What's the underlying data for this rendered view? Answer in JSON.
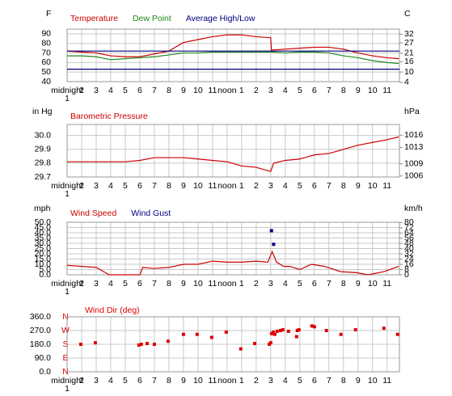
{
  "chart_data": [
    {
      "type": "line",
      "y_unit": "F",
      "y2_unit": "C",
      "xlim": [
        1,
        23.85
      ],
      "xticks": [
        {
          "value": 1,
          "label": "midnight"
        },
        2,
        3,
        4,
        5,
        6,
        7,
        8,
        9,
        10,
        11,
        {
          "value": 12,
          "label": "noon"
        },
        {
          "value": 13,
          "label": "1"
        },
        {
          "value": 14,
          "label": "2"
        },
        {
          "value": 15,
          "label": "3"
        },
        {
          "value": 16,
          "label": "4"
        },
        {
          "value": 17,
          "label": "5"
        },
        {
          "value": 18,
          "label": "6"
        },
        {
          "value": 19,
          "label": "7"
        },
        {
          "value": 20,
          "label": "8"
        },
        {
          "value": 21,
          "label": "9"
        },
        {
          "value": 22,
          "label": "10"
        },
        {
          "value": 23,
          "label": "11"
        }
      ],
      "xtick_sublabel": "1",
      "ylim": [
        40,
        95
      ],
      "yticks": [
        90,
        80,
        70,
        60,
        50,
        40
      ],
      "y2lim": [
        4.44,
        35
      ],
      "y2ticks": [
        32,
        27,
        21,
        16,
        10,
        4
      ],
      "grid": true,
      "series": [
        {
          "name": "Temperature",
          "color": "#cc0000",
          "x": [
            1,
            2,
            3,
            4,
            5,
            6,
            7,
            8,
            9,
            10,
            11,
            12,
            13,
            14,
            15,
            15.05,
            16,
            17,
            18,
            19,
            20,
            21,
            22,
            23,
            23.8
          ],
          "values": [
            72,
            71,
            70,
            67,
            66,
            66,
            69,
            72,
            81,
            84,
            87,
            89,
            89,
            87,
            86,
            73,
            74,
            75,
            76,
            76,
            74,
            70,
            67,
            65,
            64
          ]
        },
        {
          "name": "Dew Point",
          "color": "#1e8a1e",
          "x": [
            1,
            2,
            3,
            4,
            5,
            6,
            7,
            8,
            9,
            10,
            11,
            12,
            13,
            14,
            15,
            15.05,
            16,
            17,
            18,
            19,
            20,
            21,
            22,
            23,
            23.8
          ],
          "values": [
            67,
            67,
            66,
            63,
            64,
            65,
            66,
            68,
            70,
            70,
            71,
            71,
            71,
            71,
            71,
            71,
            70,
            71,
            71,
            70,
            67,
            65,
            62,
            60,
            59
          ]
        },
        {
          "name": "Average High/Low",
          "color": "#000080",
          "x": [
            1,
            23.85
          ],
          "values": [
            72,
            72
          ]
        },
        {
          "color": "#000080",
          "x": [
            1,
            23.85
          ],
          "values": [
            53,
            53
          ]
        }
      ]
    },
    {
      "type": "line",
      "y_unit": "in Hg",
      "y2_unit": "hPa",
      "xlim": [
        1,
        23.85
      ],
      "xticks": [
        {
          "value": 1,
          "label": "midnight"
        },
        2,
        3,
        4,
        5,
        6,
        7,
        8,
        9,
        10,
        11,
        {
          "value": 12,
          "label": "noon"
        },
        {
          "value": 13,
          "label": "1"
        },
        {
          "value": 14,
          "label": "2"
        },
        {
          "value": 15,
          "label": "3"
        },
        {
          "value": 16,
          "label": "4"
        },
        {
          "value": 17,
          "label": "5"
        },
        {
          "value": 18,
          "label": "6"
        },
        {
          "value": 19,
          "label": "7"
        },
        {
          "value": 20,
          "label": "8"
        },
        {
          "value": 21,
          "label": "9"
        },
        {
          "value": 22,
          "label": "10"
        },
        {
          "value": 23,
          "label": "11"
        }
      ],
      "xtick_sublabel": "1",
      "ylim": [
        29.7,
        30.08
      ],
      "yticks": [
        {
          "value": 30,
          "label": "30.0"
        },
        29.9,
        29.8,
        29.7
      ],
      "y2lim": [
        1005.76,
        1018.63
      ],
      "y2ticks": [
        1016,
        1013,
        1009,
        1006
      ],
      "grid": true,
      "series": [
        {
          "name": "Barometric Pressure",
          "color": "#cc0000",
          "x": [
            1,
            2,
            3,
            4,
            5,
            6,
            7,
            8,
            9,
            10,
            11,
            12,
            13,
            14,
            15,
            15.2,
            16,
            17,
            18,
            19,
            20,
            21,
            22,
            23,
            23.8
          ],
          "values": [
            29.81,
            29.81,
            29.81,
            29.81,
            29.81,
            29.82,
            29.84,
            29.84,
            29.84,
            29.83,
            29.82,
            29.81,
            29.78,
            29.77,
            29.74,
            29.8,
            29.82,
            29.83,
            29.86,
            29.87,
            29.9,
            29.93,
            29.95,
            29.97,
            29.99
          ]
        }
      ]
    },
    {
      "type": "line",
      "y_unit": "mph",
      "y2_unit": "km/h",
      "xlim": [
        1,
        23.85
      ],
      "xticks": [
        {
          "value": 1,
          "label": "midnight"
        },
        2,
        3,
        4,
        5,
        6,
        7,
        8,
        9,
        10,
        11,
        {
          "value": 12,
          "label": "noon"
        },
        {
          "value": 13,
          "label": "1"
        },
        {
          "value": 14,
          "label": "2"
        },
        {
          "value": 15,
          "label": "3"
        },
        {
          "value": 16,
          "label": "4"
        },
        {
          "value": 17,
          "label": "5"
        },
        {
          "value": 18,
          "label": "6"
        },
        {
          "value": 19,
          "label": "7"
        },
        {
          "value": 20,
          "label": "8"
        },
        {
          "value": 21,
          "label": "9"
        },
        {
          "value": 22,
          "label": "10"
        },
        {
          "value": 23,
          "label": "11"
        }
      ],
      "xtick_sublabel": "1",
      "ylim": [
        0,
        50
      ],
      "yticks": [
        {
          "value": 50,
          "label": "50.0"
        },
        {
          "value": 45,
          "label": "45.0"
        },
        {
          "value": 40,
          "label": "40.0"
        },
        {
          "value": 35,
          "label": "35.0"
        },
        {
          "value": 30,
          "label": "30.0"
        },
        {
          "value": 25,
          "label": "25.0"
        },
        {
          "value": 20,
          "label": "20.0"
        },
        {
          "value": 15,
          "label": "15.0"
        },
        {
          "value": 10,
          "label": "10.0"
        },
        {
          "value": 5,
          "label": "5.0"
        },
        {
          "value": 0,
          "label": "0.0"
        }
      ],
      "y2lim": [
        0,
        80.47
      ],
      "y2ticks": [
        80,
        72,
        64,
        56,
        48,
        40,
        32,
        24,
        16,
        8,
        0
      ],
      "grid": true,
      "series": [
        {
          "name": "Wind Speed",
          "color": "#cc0000",
          "x": [
            1,
            3,
            3.9,
            6,
            6.2,
            7,
            8,
            9,
            10,
            11,
            12,
            13,
            14,
            14.8,
            15.1,
            15.4,
            15.9,
            16.3,
            17,
            17.8,
            18.7,
            19.8,
            20.9,
            21.7,
            22.8,
            23.8
          ],
          "values": [
            9,
            7,
            0,
            0,
            7,
            6,
            7,
            10,
            10,
            13,
            12,
            12,
            13,
            12,
            22,
            12,
            8,
            8,
            5,
            10,
            8,
            3,
            2,
            0,
            3,
            8
          ]
        },
        {
          "name": "Wind Gust",
          "color": "#000080",
          "marker": true,
          "x": [
            15.05,
            15.2
          ],
          "values": [
            42,
            29
          ]
        }
      ]
    },
    {
      "type": "scatter",
      "xlim": [
        1,
        23.85
      ],
      "xticks": [
        {
          "value": 1,
          "label": "midnight"
        },
        2,
        3,
        4,
        5,
        6,
        7,
        8,
        9,
        10,
        11,
        {
          "value": 12,
          "label": "noon"
        },
        {
          "value": 13,
          "label": "1"
        },
        {
          "value": 14,
          "label": "2"
        },
        {
          "value": 15,
          "label": "3"
        },
        {
          "value": 16,
          "label": "4"
        },
        {
          "value": 17,
          "label": "5"
        },
        {
          "value": 18,
          "label": "6"
        },
        {
          "value": 19,
          "label": "7"
        },
        {
          "value": 20,
          "label": "8"
        },
        {
          "value": 21,
          "label": "9"
        },
        {
          "value": 22,
          "label": "10"
        },
        {
          "value": 23,
          "label": "11"
        }
      ],
      "xtick_sublabel": "1",
      "ylim": [
        0,
        360
      ],
      "yticks": [
        {
          "value": 360,
          "label": "360.0"
        },
        {
          "value": 270,
          "label": "270.0"
        },
        {
          "value": 180,
          "label": "180.0"
        },
        {
          "value": 90,
          "label": "90.0"
        },
        {
          "value": 0,
          "label": "0.0"
        }
      ],
      "compass": [
        "N",
        "W",
        "S",
        "E",
        "N"
      ],
      "grid": true,
      "series": [
        {
          "name": "Wind Dir (deg)",
          "color": "#dd0000",
          "x": [
            1.94,
            2.94,
            5.94,
            6.1,
            6.5,
            7.0,
            7.94,
            9.0,
            9.94,
            10.94,
            11.94,
            12.94,
            13.9,
            14.9,
            15.0,
            15.06,
            15.17,
            15.28,
            15.44,
            15.67,
            15.83,
            16.22,
            16.78,
            16.83,
            16.94,
            17.83,
            18.0,
            18.83,
            19.83,
            20.83,
            22.78,
            23.72
          ],
          "values": [
            180,
            190,
            175,
            180,
            185,
            180,
            200,
            245,
            245,
            225,
            260,
            150,
            185,
            180,
            190,
            250,
            260,
            245,
            265,
            270,
            275,
            265,
            230,
            270,
            275,
            300,
            295,
            270,
            245,
            275,
            285,
            245
          ]
        }
      ]
    }
  ]
}
